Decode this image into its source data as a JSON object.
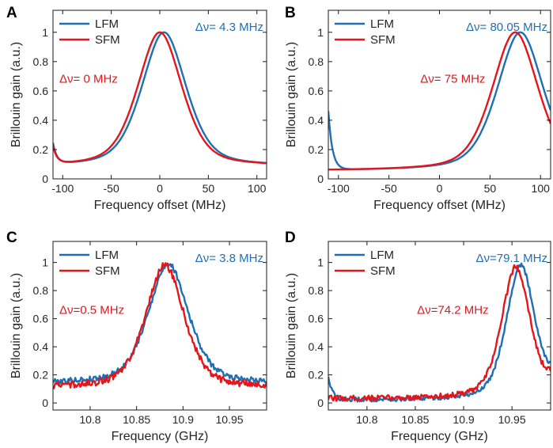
{
  "colors": {
    "lfm": "#1f6fb4",
    "sfm": "#e3161b",
    "axis": "#1a1a1a",
    "text": "#262626"
  },
  "chart_data": [
    {
      "type": "line",
      "panel_label": "A",
      "xlabel": "Frequency offset (MHz)",
      "ylabel": "Brillouin gain (a.u.)",
      "xlim": [
        -110,
        110
      ],
      "ylim": [
        0,
        1.15
      ],
      "xticks": [
        -100,
        -50,
        0,
        50,
        100
      ],
      "xtick_labels": [
        "-100",
        "-50",
        "0",
        "50",
        "100"
      ],
      "yticks": [
        0,
        0.2,
        0.4,
        0.6,
        0.8,
        1
      ],
      "ytick_labels": [
        "0",
        "0.2",
        "0.4",
        "0.6",
        "0.8",
        "1"
      ],
      "legend": [
        "LFM",
        "SFM"
      ],
      "legend_position": "top-left",
      "annotations": [
        {
          "text": "Δν= 4.3 MHz",
          "series": "LFM",
          "position": "top-right"
        },
        {
          "text": "Δν= 0 MHz",
          "series": "SFM",
          "position": "left-middle"
        }
      ],
      "series": [
        {
          "name": "LFM",
          "center": 4.3,
          "baseline": 0.085,
          "width": 55,
          "peak": 1.0,
          "left_spike": 0.14,
          "right_spike": 0,
          "noise": 0
        },
        {
          "name": "SFM",
          "center": 0,
          "baseline": 0.085,
          "width": 55,
          "peak": 1.0,
          "left_spike": 0.12,
          "right_spike": 0,
          "noise": 0
        }
      ]
    },
    {
      "type": "line",
      "panel_label": "B",
      "xlabel": "Frequency offset (MHz)",
      "ylabel": "Brillouin gain (a.u.)",
      "xlim": [
        -110,
        110
      ],
      "ylim": [
        0,
        1.15
      ],
      "xticks": [
        -100,
        -50,
        0,
        50,
        100
      ],
      "xtick_labels": [
        "-100",
        "-50",
        "0",
        "50",
        "100"
      ],
      "yticks": [
        0,
        0.2,
        0.4,
        0.6,
        0.8,
        1
      ],
      "ytick_labels": [
        "0",
        "0.2",
        "0.4",
        "0.6",
        "0.8",
        "1"
      ],
      "legend": [
        "LFM",
        "SFM"
      ],
      "legend_position": "top-left",
      "annotations": [
        {
          "text": "Δν= 80.05 MHz",
          "series": "LFM",
          "position": "top-right"
        },
        {
          "text": "Δν= 75 MHz",
          "series": "SFM",
          "position": "center"
        }
      ],
      "series": [
        {
          "name": "LFM",
          "center": 80.05,
          "baseline": 0.055,
          "width": 55,
          "peak": 1.0,
          "left_spike": 0.4,
          "right_spike": 0,
          "noise": 0
        },
        {
          "name": "SFM",
          "center": 75,
          "baseline": 0.055,
          "width": 55,
          "peak": 1.0,
          "left_spike": 0,
          "right_spike": 0,
          "noise": 0
        }
      ]
    },
    {
      "type": "line",
      "panel_label": "C",
      "xlabel": "Frequency (GHz)",
      "ylabel": "Brillouin gain (a.u.)",
      "xlim": [
        10.76,
        10.99
      ],
      "ylim": [
        -0.05,
        1.15
      ],
      "xticks": [
        10.8,
        10.85,
        10.9,
        10.95
      ],
      "xtick_labels": [
        "10.8",
        "10.85",
        "10.9",
        "10.95"
      ],
      "yticks": [
        0,
        0.2,
        0.4,
        0.6,
        0.8,
        1
      ],
      "ytick_labels": [
        "0",
        "0.2",
        "0.4",
        "0.6",
        "0.8",
        "1"
      ],
      "legend": [
        "LFM",
        "SFM"
      ],
      "legend_position": "top-left",
      "annotations": [
        {
          "text": "Δν= 3.8 MHz",
          "series": "LFM",
          "position": "top-right"
        },
        {
          "text": "Δν=0.5 MHz",
          "series": "SFM",
          "position": "left-middle"
        }
      ],
      "series": [
        {
          "name": "LFM",
          "center": 10.8842,
          "baseline": 0.14,
          "width": 0.052,
          "peak": 0.99,
          "left_spike": 0,
          "right_spike": 0,
          "noise": 0.025
        },
        {
          "name": "SFM",
          "center": 10.8805,
          "baseline": 0.11,
          "width": 0.05,
          "peak": 0.98,
          "left_spike": 0,
          "right_spike": 0,
          "noise": 0.03
        }
      ]
    },
    {
      "type": "line",
      "panel_label": "D",
      "xlabel": "Frequency (GHz)",
      "ylabel": "Brillouin gain (a.u.)",
      "xlim": [
        10.76,
        10.99
      ],
      "ylim": [
        -0.05,
        1.15
      ],
      "xticks": [
        10.8,
        10.85,
        10.9,
        10.95
      ],
      "xtick_labels": [
        "10.8",
        "10.85",
        "10.9",
        "10.95"
      ],
      "yticks": [
        0,
        0.2,
        0.4,
        0.6,
        0.8,
        1
      ],
      "ytick_labels": [
        "0",
        "0.2",
        "0.4",
        "0.6",
        "0.8",
        "1"
      ],
      "legend": [
        "LFM",
        "SFM"
      ],
      "legend_position": "top-left",
      "annotations": [
        {
          "text": "Δν=79.1 MHz",
          "series": "LFM",
          "position": "top-right"
        },
        {
          "text": "Δν=74.2 MHz",
          "series": "SFM",
          "position": "center"
        }
      ],
      "series": [
        {
          "name": "LFM",
          "center": 10.9591,
          "baseline": 0.02,
          "width": 0.036,
          "peak": 0.98,
          "left_spike": 0.17,
          "right_spike": 0.1,
          "noise": 0.02
        },
        {
          "name": "SFM",
          "center": 10.9542,
          "baseline": 0.03,
          "width": 0.036,
          "peak": 0.97,
          "left_spike": 0,
          "right_spike": 0.1,
          "noise": 0.025
        }
      ]
    }
  ]
}
